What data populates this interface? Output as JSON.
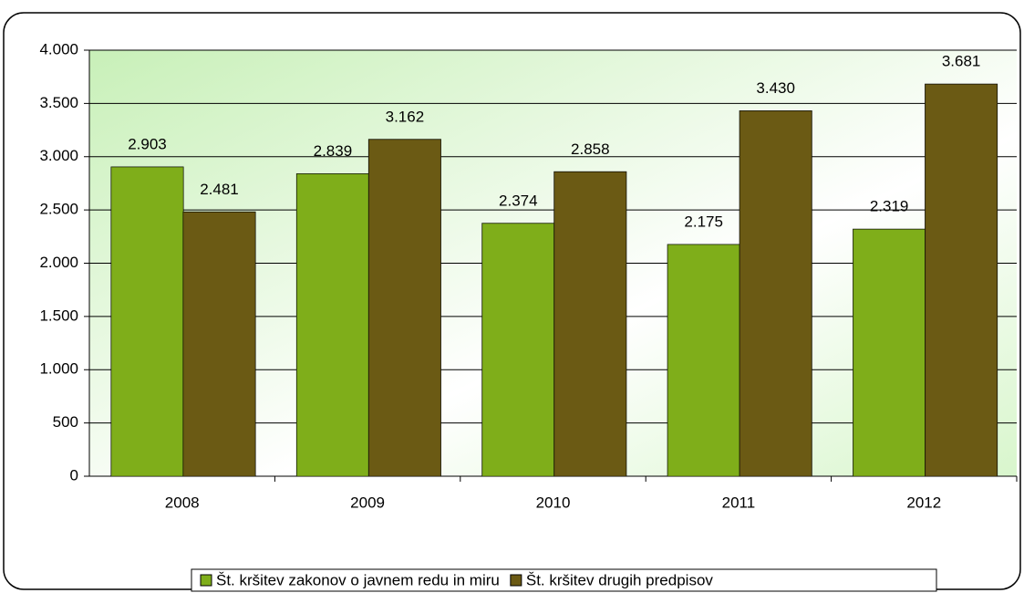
{
  "chart_data": {
    "type": "bar",
    "categories": [
      "2008",
      "2009",
      "2010",
      "2011",
      "2012"
    ],
    "series": [
      {
        "name": "Št. kršitev zakonov o javnem redu in miru",
        "color": "#7fae1a",
        "values": [
          2903,
          2839,
          2374,
          2175,
          2319
        ],
        "value_labels": [
          "2.903",
          "2.839",
          "2.374",
          "2.175",
          "2.319"
        ]
      },
      {
        "name": "Št. kršitev drugih predpisov",
        "color": "#6b5a14",
        "values": [
          2481,
          3162,
          2858,
          3430,
          3681
        ],
        "value_labels": [
          "2.481",
          "3.162",
          "2.858",
          "3.430",
          "3.681"
        ]
      }
    ],
    "ylim": [
      0,
      4000
    ],
    "yticks": [
      0,
      500,
      {
        "value": 1000,
        "label": "1.000"
      },
      {
        "value": 1500,
        "label": "1.500"
      },
      {
        "value": 2000,
        "label": "2.000"
      },
      {
        "value": 2500,
        "label": "2.500"
      },
      {
        "value": 3000,
        "label": "3.000"
      },
      {
        "value": 3500,
        "label": "3.500"
      },
      {
        "value": 4000,
        "label": "4.000"
      }
    ],
    "grid": true,
    "legend": "bottom"
  }
}
